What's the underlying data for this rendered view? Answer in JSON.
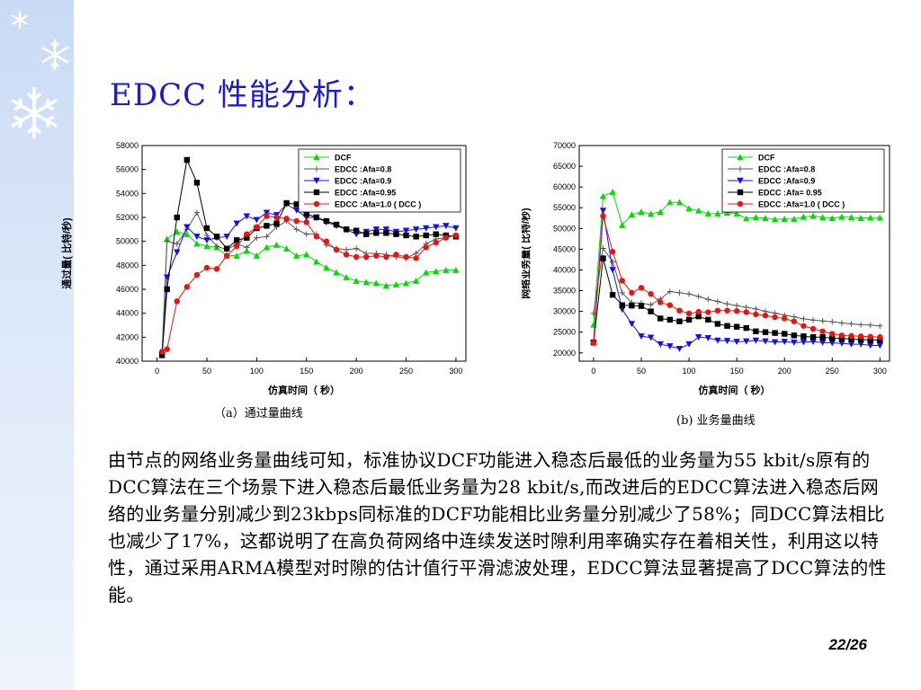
{
  "slide": {
    "title": "EDCC 性能分析：",
    "caption_a": "（a）通过量曲线",
    "caption_b": "(b) 业务量曲线",
    "body": "由节点的网络业务量曲线可知，标准协议DCF功能进入稳态后最低的业务量为55 kbit/s原有的DCC算法在三个场景下进入稳态后最低业务量为28 kbit/s,而改进后的EDCC算法进入稳态后网络的业务量分别减少到23kbps同标准的DCF功能相比业务量分别减少了58%；同DCC算法相比也减少了17%，这都说明了在高负荷网络中连续发送时隙利用率确实存在着相关性，利用这以特性，通过采用ARMA模型对时隙的估计值行平滑滤波处理，EDCC算法显著提高了DCC算法的性能。",
    "page_number": "22/26"
  },
  "chart_data": [
    {
      "type": "line",
      "xlabel": "仿真时间（ 秒）",
      "ylabel": "通过量( 比特/秒)",
      "xlim": [
        -15,
        310
      ],
      "ylim": [
        40000,
        58000
      ],
      "xticks": [
        0,
        50,
        100,
        150,
        200,
        250,
        300
      ],
      "yticks": [
        40000,
        42000,
        44000,
        46000,
        48000,
        50000,
        52000,
        54000,
        56000,
        58000
      ],
      "legend_position": "top-right",
      "series": [
        {
          "name": "DCF",
          "marker": "triangle-up",
          "color": "#00dd00",
          "x": [
            5,
            10,
            20,
            30,
            40,
            50,
            60,
            70,
            80,
            90,
            100,
            110,
            120,
            130,
            140,
            150,
            160,
            170,
            180,
            190,
            200,
            210,
            220,
            230,
            240,
            250,
            260,
            270,
            280,
            290,
            300
          ],
          "y": [
            40500,
            50200,
            50800,
            50600,
            49800,
            49600,
            49500,
            48800,
            48800,
            49200,
            48800,
            49500,
            49700,
            49400,
            48800,
            48900,
            48300,
            47800,
            47400,
            47000,
            46700,
            46600,
            46500,
            46300,
            46400,
            46500,
            46700,
            47400,
            47500,
            47600,
            47600
          ]
        },
        {
          "name": "EDCC :Afa=0.8",
          "marker": "plus",
          "color": "#555555",
          "x": [
            5,
            10,
            20,
            30,
            40,
            50,
            60,
            70,
            80,
            90,
            100,
            110,
            120,
            130,
            140,
            150,
            160,
            170,
            180,
            190,
            200,
            210,
            220,
            230,
            240,
            250,
            260,
            270,
            280,
            290,
            300
          ],
          "y": [
            40500,
            50000,
            49800,
            51000,
            52400,
            50500,
            49600,
            49300,
            49800,
            49500,
            50300,
            50400,
            51200,
            51700,
            51000,
            50600,
            50600,
            49700,
            49400,
            49300,
            49400,
            49000,
            49000,
            48900,
            48700,
            48600,
            49000,
            49800,
            50200,
            50300,
            50500
          ]
        },
        {
          "name": "EDCC :Afa=0.9",
          "marker": "triangle-down",
          "color": "#1010ee",
          "x": [
            5,
            10,
            20,
            30,
            40,
            50,
            60,
            70,
            80,
            90,
            100,
            110,
            120,
            130,
            140,
            150,
            160,
            170,
            180,
            190,
            200,
            210,
            220,
            230,
            240,
            250,
            260,
            270,
            280,
            290,
            300
          ],
          "y": [
            40500,
            47000,
            49100,
            51200,
            50400,
            50100,
            50300,
            50400,
            51500,
            52100,
            51800,
            52400,
            52200,
            53100,
            52600,
            52000,
            52000,
            51600,
            51300,
            51000,
            50600,
            50800,
            51000,
            51000,
            50800,
            50900,
            51000,
            51100,
            51200,
            51300,
            51100
          ]
        },
        {
          "name": "EDCC :Afa=0.95",
          "marker": "square",
          "color": "#000000",
          "x": [
            5,
            10,
            20,
            30,
            40,
            50,
            60,
            70,
            80,
            90,
            100,
            110,
            120,
            130,
            140,
            150,
            160,
            170,
            180,
            190,
            200,
            210,
            220,
            230,
            240,
            250,
            260,
            270,
            280,
            290,
            300
          ],
          "y": [
            40500,
            46000,
            52000,
            56800,
            54900,
            51100,
            50400,
            49400,
            50100,
            50300,
            51100,
            51300,
            51500,
            53200,
            53100,
            52300,
            52000,
            51700,
            51400,
            51000,
            50900,
            50600,
            50700,
            50700,
            50600,
            50500,
            50400,
            50500,
            50600,
            50500,
            50400
          ]
        },
        {
          "name": "EDCC :Afa=1.0 ( DCC )",
          "marker": "circle",
          "color": "#ee1111",
          "x": [
            5,
            10,
            20,
            30,
            40,
            50,
            60,
            70,
            80,
            90,
            100,
            110,
            120,
            130,
            140,
            150,
            160,
            170,
            180,
            190,
            200,
            210,
            220,
            230,
            240,
            250,
            260,
            270,
            280,
            290,
            300
          ],
          "y": [
            40800,
            41000,
            45000,
            46200,
            47200,
            47800,
            47700,
            48800,
            49600,
            50600,
            51200,
            52100,
            52000,
            51900,
            51700,
            51600,
            50400,
            50000,
            49300,
            48900,
            48700,
            48700,
            48800,
            48700,
            48900,
            48700,
            48600,
            49500,
            49900,
            50300,
            50500
          ]
        }
      ]
    },
    {
      "type": "line",
      "xlabel": "仿真时间（ 秒）",
      "ylabel": "网络业务量( 比特/秒)",
      "xlim": [
        -15,
        310
      ],
      "ylim": [
        18000,
        70000
      ],
      "xticks": [
        0,
        50,
        100,
        150,
        200,
        250,
        300
      ],
      "yticks": [
        20000,
        25000,
        30000,
        35000,
        40000,
        45000,
        50000,
        55000,
        60000,
        65000,
        70000
      ],
      "legend_position": "top-right",
      "series": [
        {
          "name": "DCF",
          "marker": "triangle-up",
          "color": "#00dd00",
          "x": [
            0,
            10,
            20,
            30,
            40,
            50,
            60,
            70,
            80,
            90,
            100,
            110,
            120,
            130,
            140,
            150,
            160,
            170,
            180,
            190,
            200,
            210,
            220,
            230,
            240,
            250,
            260,
            270,
            280,
            290,
            300
          ],
          "y": [
            26800,
            57800,
            58800,
            50800,
            53300,
            54000,
            53500,
            54000,
            56300,
            56300,
            54800,
            54300,
            53600,
            53600,
            53800,
            53600,
            52400,
            52700,
            52500,
            52200,
            52300,
            52300,
            52800,
            53000,
            52700,
            52500,
            52800,
            52700,
            52500,
            52600,
            52600
          ]
        },
        {
          "name": "EDCC :Afa=0.8",
          "marker": "plus",
          "color": "#555555",
          "x": [
            0,
            10,
            20,
            30,
            40,
            50,
            60,
            70,
            80,
            90,
            100,
            110,
            120,
            130,
            140,
            150,
            160,
            170,
            180,
            190,
            200,
            210,
            220,
            230,
            240,
            250,
            260,
            270,
            280,
            290,
            300
          ],
          "y": [
            29500,
            45200,
            42000,
            34500,
            32100,
            32000,
            31600,
            33000,
            34800,
            34500,
            34200,
            33600,
            32900,
            32400,
            31800,
            31400,
            31000,
            30600,
            30000,
            29600,
            29100,
            28700,
            28200,
            27900,
            27700,
            27500,
            27200,
            27000,
            26800,
            26700,
            26500
          ]
        },
        {
          "name": "EDCC :Afa=0.9",
          "marker": "triangle-down",
          "color": "#1010ee",
          "x": [
            0,
            10,
            20,
            30,
            40,
            50,
            60,
            70,
            80,
            90,
            100,
            110,
            120,
            130,
            140,
            150,
            160,
            170,
            180,
            190,
            200,
            210,
            220,
            230,
            240,
            250,
            260,
            270,
            280,
            290,
            300
          ],
          "y": [
            22500,
            54300,
            40000,
            30500,
            27000,
            24000,
            23700,
            22100,
            21600,
            21000,
            22100,
            23800,
            23600,
            23000,
            22900,
            22700,
            22800,
            23000,
            22800,
            22600,
            22700,
            22500,
            22600,
            22700,
            22500,
            22400,
            22300,
            22100,
            22100,
            21800,
            21800
          ]
        },
        {
          "name": "EDCC :Afa= 0.95",
          "marker": "square",
          "color": "#000000",
          "x": [
            0,
            10,
            20,
            30,
            40,
            50,
            60,
            70,
            80,
            90,
            100,
            110,
            120,
            130,
            140,
            150,
            160,
            170,
            180,
            190,
            200,
            210,
            220,
            230,
            240,
            250,
            260,
            270,
            280,
            290,
            300
          ],
          "y": [
            22500,
            42800,
            34000,
            31500,
            31400,
            31300,
            30000,
            28300,
            28000,
            27600,
            28000,
            28800,
            28000,
            27000,
            26500,
            26300,
            26000,
            25200,
            25000,
            24800,
            24600,
            24200,
            24000,
            23800,
            23800,
            23500,
            23500,
            23300,
            23200,
            23100,
            23100
          ]
        },
        {
          "name": "EDCC :Afa=1.0 ( DCC )",
          "marker": "circle",
          "color": "#ee1111",
          "x": [
            0,
            10,
            20,
            30,
            40,
            50,
            60,
            70,
            80,
            90,
            100,
            110,
            120,
            130,
            140,
            150,
            160,
            170,
            180,
            190,
            200,
            210,
            220,
            230,
            240,
            250,
            260,
            270,
            280,
            290,
            300
          ],
          "y": [
            22400,
            53000,
            44400,
            37400,
            34500,
            35700,
            34200,
            32200,
            31500,
            30200,
            29500,
            29900,
            29800,
            30200,
            30200,
            30100,
            29800,
            29300,
            29000,
            28600,
            28300,
            27600,
            26500,
            25800,
            25200,
            24600,
            24200,
            24100,
            24000,
            23900,
            23800
          ]
        }
      ]
    }
  ]
}
